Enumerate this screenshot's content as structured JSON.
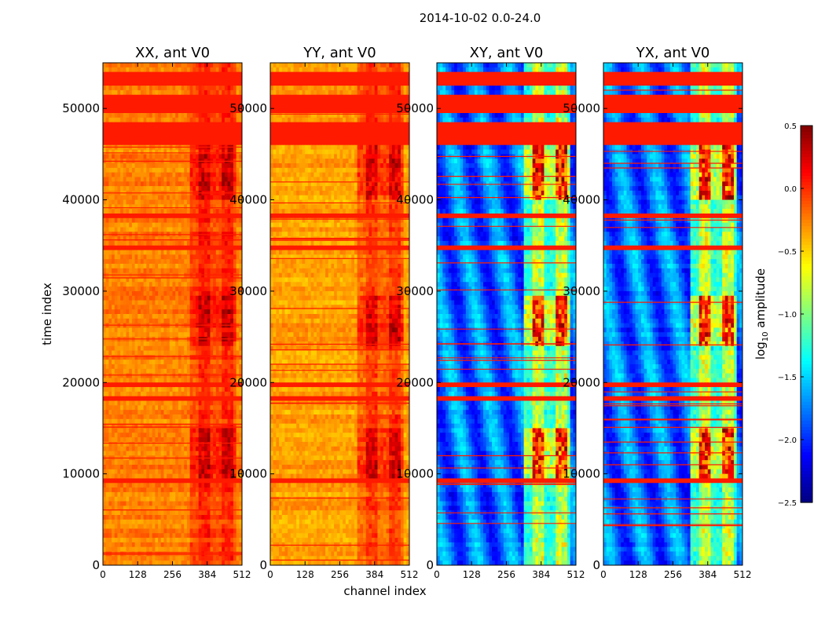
{
  "chart_data": {
    "type": "heatmap",
    "title": "2014-10-02 0.0-24.0",
    "xlabel": "channel index",
    "ylabel": "time index",
    "xlim": [
      0,
      512
    ],
    "ylim": [
      0,
      55000
    ],
    "x_ticks": [
      0,
      128,
      256,
      384,
      512
    ],
    "y_ticks": [
      0,
      10000,
      20000,
      30000,
      40000,
      50000
    ],
    "panels": [
      {
        "title": "XX, ant V0",
        "base_log_amp": -0.25,
        "structure_boost": 0.55
      },
      {
        "title": "YY, ant V0",
        "base_log_amp": -0.35,
        "structure_boost": 0.6
      },
      {
        "title": "XY, ant V0",
        "base_log_amp": -1.8,
        "structure_boost": 1.9
      },
      {
        "title": "YX, ant V0",
        "base_log_amp": -1.8,
        "structure_boost": 1.9
      }
    ],
    "flagged_time_bands": [
      [
        52500,
        54000
      ],
      [
        49500,
        51500
      ],
      [
        47000,
        48500
      ],
      [
        46000,
        46800
      ],
      [
        38000,
        38500
      ],
      [
        34500,
        35200
      ],
      [
        33800,
        34100
      ],
      [
        19500,
        19800
      ],
      [
        18200,
        18500
      ],
      [
        12300,
        12500
      ],
      [
        9200,
        9400
      ],
      [
        5300,
        5500
      ]
    ],
    "colorbar": {
      "label": "log10 amplitude",
      "min": -2.5,
      "max": 0.5,
      "ticks": [
        "0.5",
        "0.0",
        "−0.5",
        "−1.0",
        "−1.5",
        "−2.0",
        "−2.5"
      ],
      "colormap": "jet"
    }
  },
  "labels": {
    "title": "2014-10-02 0.0-24.0",
    "xlabel": "channel index",
    "ylabel": "time index",
    "colorbar_label": "log",
    "colorbar_sub": "10",
    "colorbar_suffix": " amplitude"
  }
}
